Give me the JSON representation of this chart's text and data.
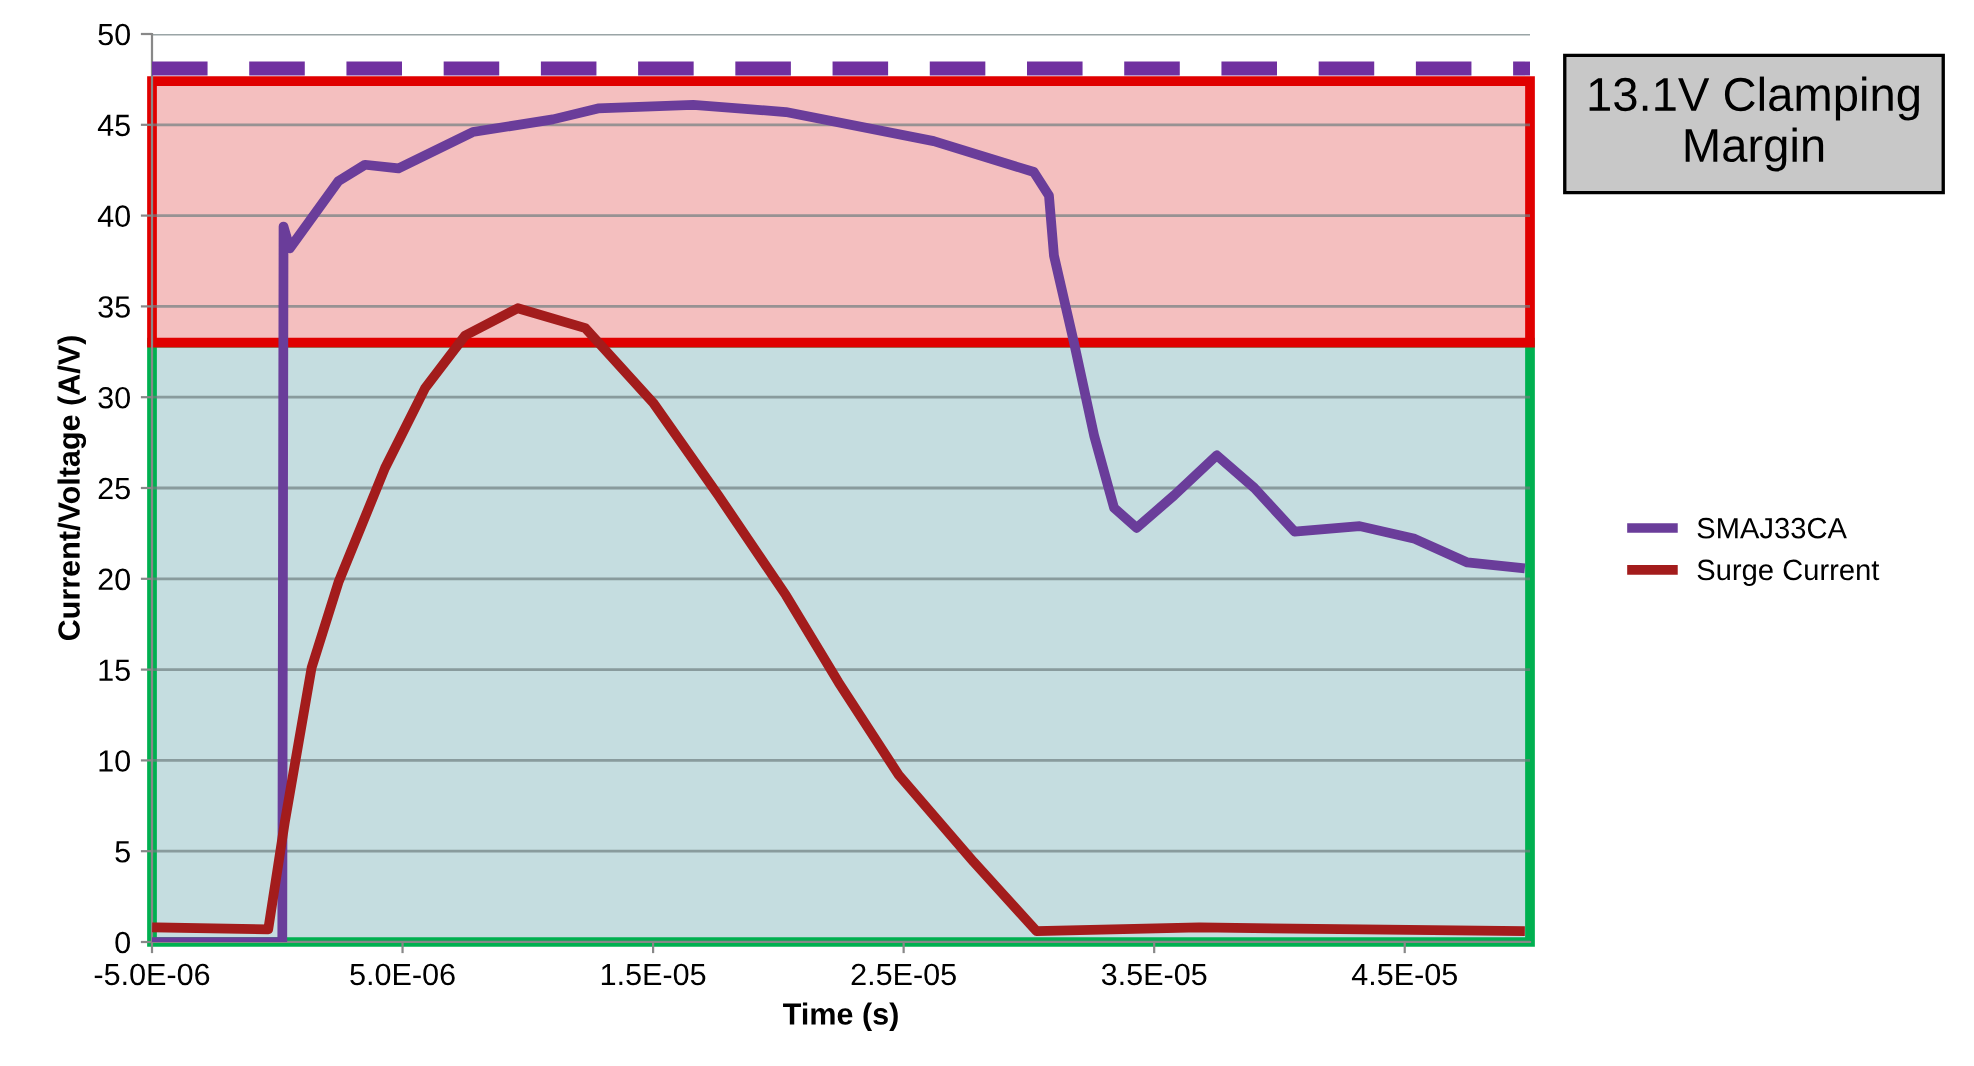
{
  "chart_data": {
    "type": "line",
    "xlabel": "Time (s)",
    "ylabel": "Current/Voltage (A/V)",
    "xlim": [
      -5e-06,
      5e-05
    ],
    "xticks": [
      {
        "value": -5e-06,
        "label": "-5.0E-06"
      },
      {
        "value": 5e-06,
        "label": "5.0E-06"
      },
      {
        "value": 1.5e-05,
        "label": "1.5E-05"
      },
      {
        "value": 2.5e-05,
        "label": "2.5E-05"
      },
      {
        "value": 3.5e-05,
        "label": "3.5E-05"
      },
      {
        "value": 4.5e-05,
        "label": "4.5E-05"
      }
    ],
    "ylim": [
      0,
      50
    ],
    "yticks": [
      0,
      5,
      10,
      15,
      20,
      25,
      30,
      35,
      40,
      45,
      50
    ],
    "grid": "y",
    "legend": "right",
    "line_style": "solid",
    "marker": "none",
    "bands": [
      {
        "axis": "y",
        "from": 0,
        "to": 33,
        "color": "#c5dde0"
      },
      {
        "axis": "y",
        "from": 33,
        "to": 47.4,
        "color": "#f4bfbf"
      }
    ],
    "ref_lines": [
      {
        "axis": "y",
        "value": 48.1,
        "color": "#7030a0",
        "line_style": "dashed"
      }
    ],
    "annotations": [
      "13.1V Clamping Margin"
    ],
    "series": [
      {
        "name": "SMAJ33CA",
        "color": "#6a3d9a",
        "x": [
          -5e-06,
          2e-07,
          2.5e-07,
          5e-07,
          2.44e-06,
          3.5e-06,
          4.84e-06,
          7.8e-06,
          1.1e-05,
          1.28e-05,
          1.66e-05,
          2.03e-05,
          2.62e-05,
          3.02e-05,
          3.08e-05,
          3.1e-05,
          3.18e-05,
          3.26e-05,
          3.34e-05,
          3.43e-05,
          3.58e-05,
          3.75e-05,
          3.9e-05,
          4.06e-05,
          4.32e-05,
          4.54e-05,
          4.75e-05,
          4.96e-05
        ],
        "values": [
          0,
          0,
          39.4,
          38.2,
          41.9,
          42.8,
          42.6,
          44.6,
          45.3,
          45.9,
          46.1,
          45.7,
          44.1,
          42.4,
          41.1,
          37.8,
          33,
          27.9,
          23.9,
          22.8,
          24.6,
          26.8,
          25,
          22.6,
          22.9,
          22.2,
          20.9,
          20.6
        ]
      },
      {
        "name": "Surge Current",
        "color": "#a31c1c",
        "x": [
          -4.8e-06,
          -3.6e-07,
          3e-07,
          1.37e-06,
          2.44e-06,
          4.3e-06,
          5.9e-06,
          7.5e-06,
          9.6e-06,
          1.23e-05,
          1.5e-05,
          1.76e-05,
          2.03e-05,
          2.24e-05,
          2.48e-05,
          2.78e-05,
          3.03e-05,
          3.68e-05,
          4.96e-05
        ],
        "values": [
          0.8,
          0.7,
          6.6,
          15.1,
          19.8,
          26.1,
          30.5,
          33.4,
          34.9,
          33.8,
          29.7,
          24.6,
          19.1,
          14.3,
          9.2,
          4.4,
          0.6,
          0.8,
          0.6
        ]
      }
    ]
  }
}
